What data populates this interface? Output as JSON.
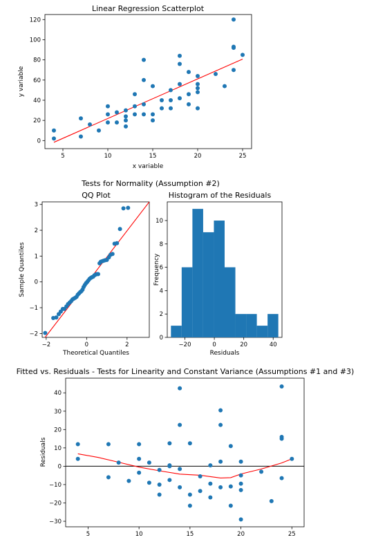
{
  "figure": {
    "suptitle": "Tests for Normality (Assumption #2)"
  },
  "chart_data": [
    {
      "id": "scatter",
      "type": "scatter",
      "title": "Linear Regression Scatterplot",
      "xlabel": "x variable",
      "ylabel": "y variable",
      "xlim": [
        3.0,
        26.0
      ],
      "ylim": [
        -8,
        125
      ],
      "xticks": [
        5,
        10,
        15,
        20,
        25
      ],
      "yticks": [
        0,
        20,
        40,
        60,
        80,
        100,
        120
      ],
      "point_color": "#1f77b4",
      "line_color": "#ff0000",
      "points": [
        [
          4,
          10
        ],
        [
          4,
          2
        ],
        [
          7,
          22
        ],
        [
          7,
          4
        ],
        [
          8,
          16
        ],
        [
          9,
          10
        ],
        [
          10,
          34
        ],
        [
          10,
          26
        ],
        [
          10,
          18
        ],
        [
          11,
          28
        ],
        [
          11,
          18
        ],
        [
          12,
          30
        ],
        [
          12,
          24
        ],
        [
          12,
          20
        ],
        [
          12,
          14
        ],
        [
          13,
          46
        ],
        [
          13,
          34
        ],
        [
          13,
          26
        ],
        [
          14,
          80
        ],
        [
          14,
          60
        ],
        [
          14,
          36
        ],
        [
          14,
          26
        ],
        [
          15,
          54
        ],
        [
          15,
          26
        ],
        [
          15,
          20
        ],
        [
          16,
          40
        ],
        [
          16,
          32
        ],
        [
          17,
          50
        ],
        [
          17,
          40
        ],
        [
          17,
          32
        ],
        [
          18,
          84
        ],
        [
          18,
          76
        ],
        [
          18,
          56
        ],
        [
          18,
          42
        ],
        [
          19,
          68
        ],
        [
          19,
          46
        ],
        [
          19,
          36
        ],
        [
          20,
          64
        ],
        [
          20,
          56
        ],
        [
          20,
          52
        ],
        [
          20,
          48
        ],
        [
          20,
          32
        ],
        [
          22,
          66
        ],
        [
          23,
          54
        ],
        [
          24,
          120
        ],
        [
          24,
          93
        ],
        [
          24,
          92
        ],
        [
          24,
          70
        ],
        [
          25,
          85
        ]
      ],
      "fit_line": [
        [
          4,
          -1.7
        ],
        [
          25,
          80.8
        ]
      ]
    },
    {
      "id": "qq",
      "type": "scatter",
      "title": "QQ Plot",
      "xlabel": "Theoretical Quantiles",
      "ylabel": "Sample Quantiles",
      "xlim": [
        -2.2,
        3.1
      ],
      "ylim": [
        -2.15,
        3.1
      ],
      "xticks": [
        -2,
        0,
        2
      ],
      "yticks": [
        -2,
        -1,
        0,
        1,
        2,
        3
      ],
      "point_color": "#1f77b4",
      "line_color": "#ff0000",
      "points": [
        [
          -2.05,
          -1.98
        ],
        [
          -1.65,
          -1.4
        ],
        [
          -1.5,
          -1.38
        ],
        [
          -1.38,
          -1.25
        ],
        [
          -1.28,
          -1.15
        ],
        [
          -1.18,
          -1.05
        ],
        [
          -1.1,
          -1.05
        ],
        [
          -1.0,
          -0.95
        ],
        [
          -0.92,
          -0.86
        ],
        [
          -0.84,
          -0.8
        ],
        [
          -0.77,
          -0.75
        ],
        [
          -0.7,
          -0.68
        ],
        [
          -0.64,
          -0.65
        ],
        [
          -0.57,
          -0.62
        ],
        [
          -0.5,
          -0.58
        ],
        [
          -0.44,
          -0.5
        ],
        [
          -0.38,
          -0.45
        ],
        [
          -0.32,
          -0.4
        ],
        [
          -0.26,
          -0.36
        ],
        [
          -0.2,
          -0.3
        ],
        [
          -0.15,
          -0.2
        ],
        [
          -0.09,
          -0.12
        ],
        [
          -0.03,
          -0.05
        ],
        [
          0.03,
          0.0
        ],
        [
          0.09,
          0.06
        ],
        [
          0.15,
          0.12
        ],
        [
          0.2,
          0.15
        ],
        [
          0.26,
          0.18
        ],
        [
          0.32,
          0.2
        ],
        [
          0.38,
          0.25
        ],
        [
          0.44,
          0.28
        ],
        [
          0.5,
          0.3
        ],
        [
          0.57,
          0.3
        ],
        [
          0.64,
          0.72
        ],
        [
          0.7,
          0.78
        ],
        [
          0.77,
          0.8
        ],
        [
          0.84,
          0.82
        ],
        [
          0.92,
          0.84
        ],
        [
          1.0,
          0.85
        ],
        [
          1.1,
          0.95
        ],
        [
          1.18,
          1.05
        ],
        [
          1.28,
          1.08
        ],
        [
          1.38,
          1.48
        ],
        [
          1.5,
          1.5
        ],
        [
          1.65,
          2.05
        ],
        [
          1.82,
          2.85
        ],
        [
          2.05,
          2.87
        ]
      ],
      "fit_line": [
        [
          -2.2,
          -2.3
        ],
        [
          3.1,
          3.1
        ]
      ]
    },
    {
      "id": "hist",
      "type": "bar",
      "title": "Histogram of the Residuals",
      "xlabel": "Residuals",
      "ylabel": "Frequency",
      "xlim": [
        -32,
        46
      ],
      "ylim": [
        0,
        11.6
      ],
      "xticks": [
        -20,
        0,
        20,
        40
      ],
      "yticks": [
        0,
        2,
        4,
        6,
        8,
        10
      ],
      "bar_color": "#1f77b4",
      "bins": [
        {
          "from": -29.5,
          "to": -22.2,
          "count": 1
        },
        {
          "from": -22.2,
          "to": -14.9,
          "count": 6
        },
        {
          "from": -14.9,
          "to": -7.6,
          "count": 11
        },
        {
          "from": -7.6,
          "to": -0.3,
          "count": 9
        },
        {
          "from": -0.3,
          "to": 7.0,
          "count": 10
        },
        {
          "from": 7.0,
          "to": 14.3,
          "count": 6
        },
        {
          "from": 14.3,
          "to": 21.6,
          "count": 2
        },
        {
          "from": 21.6,
          "to": 28.9,
          "count": 2
        },
        {
          "from": 28.9,
          "to": 36.2,
          "count": 1
        },
        {
          "from": 36.2,
          "to": 43.5,
          "count": 2
        }
      ]
    },
    {
      "id": "fitted",
      "type": "scatter",
      "title": "Fitted vs. Residuals - Tests for Linearity and Constant Variance (Assumptions #1 and #3)",
      "xlabel": "",
      "ylabel": "Residuals",
      "xlim": [
        2.8,
        26.2
      ],
      "ylim": [
        -33,
        48
      ],
      "xticks": [
        5,
        10,
        15,
        20,
        25
      ],
      "yticks": [
        -30,
        -20,
        -10,
        0,
        10,
        20,
        30,
        40
      ],
      "point_color": "#1f77b4",
      "lowess_color": "#ff0000",
      "hline": 0,
      "points": [
        [
          4,
          12
        ],
        [
          4,
          4
        ],
        [
          7,
          12
        ],
        [
          7,
          -6
        ],
        [
          8,
          2
        ],
        [
          9,
          -8
        ],
        [
          10,
          12
        ],
        [
          10,
          4
        ],
        [
          10,
          -3.5
        ],
        [
          11,
          2
        ],
        [
          11,
          -9
        ],
        [
          12,
          -2
        ],
        [
          12,
          -10
        ],
        [
          12,
          -15.5
        ],
        [
          13,
          12.5
        ],
        [
          13,
          0.5
        ],
        [
          13,
          0
        ],
        [
          13,
          -7.5
        ],
        [
          14,
          42.5
        ],
        [
          14,
          22.5
        ],
        [
          14,
          -1.5
        ],
        [
          14,
          -11.5
        ],
        [
          15,
          12.5
        ],
        [
          15,
          -15.5
        ],
        [
          15,
          -21.5
        ],
        [
          16,
          -5.5
        ],
        [
          16,
          -13.5
        ],
        [
          17,
          0.5
        ],
        [
          17,
          -9.5
        ],
        [
          17,
          -17
        ],
        [
          18,
          30.5
        ],
        [
          18,
          22.5
        ],
        [
          18,
          2.5
        ],
        [
          18,
          -11.5
        ],
        [
          19,
          11
        ],
        [
          19,
          -11
        ],
        [
          19,
          -21.5
        ],
        [
          20,
          2.5
        ],
        [
          20,
          -5
        ],
        [
          20,
          -9.5
        ],
        [
          20,
          -13
        ],
        [
          20,
          -29
        ],
        [
          22,
          -3
        ],
        [
          23,
          -19
        ],
        [
          24,
          43.5
        ],
        [
          24,
          16
        ],
        [
          24,
          15
        ],
        [
          24,
          -6.5
        ],
        [
          25,
          4
        ]
      ],
      "lowess": [
        [
          4,
          6.8
        ],
        [
          6,
          4.8
        ],
        [
          8,
          2.2
        ],
        [
          10,
          -0.5
        ],
        [
          12,
          -2.5
        ],
        [
          14,
          -4.3
        ],
        [
          16,
          -4.9
        ],
        [
          18,
          -6.4
        ],
        [
          19,
          -6.2
        ],
        [
          20,
          -4.2
        ],
        [
          22,
          -1.5
        ],
        [
          24,
          1.8
        ],
        [
          25,
          4
        ]
      ]
    }
  ]
}
